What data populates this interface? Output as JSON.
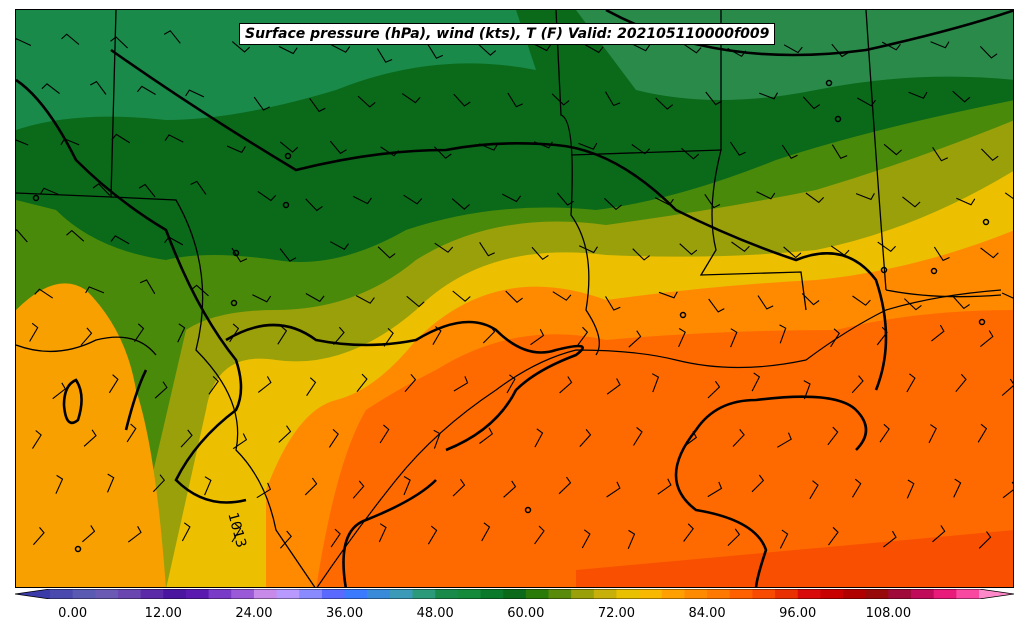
{
  "title": "Surface pressure (hPa), wind (kts), T (F) Valid: 202105110000f009",
  "isobar_label": "1013",
  "colorbar": {
    "ticks": [
      "0.00",
      "12.00",
      "24.00",
      "36.00",
      "48.00",
      "60.00",
      "72.00",
      "84.00",
      "96.00",
      "108.00"
    ],
    "min": -6,
    "max": 123,
    "step": 3,
    "colors": [
      "#3a3aa8",
      "#4a4aae",
      "#5a5ab2",
      "#6a5ab4",
      "#6a46b0",
      "#5a2aa8",
      "#4a16a0",
      "#5a1ab0",
      "#7a3ac8",
      "#9a5ad8",
      "#c88ae8",
      "#b89aff",
      "#8a8aff",
      "#5a6aff",
      "#3a7aff",
      "#3a8ada",
      "#3a9ab8",
      "#2a9a7a",
      "#1a8a4a",
      "#148a3a",
      "#0a7a2a",
      "#0a6a1a",
      "#2a7a0a",
      "#5a8a0a",
      "#9aa00a",
      "#c8b00a",
      "#e8c000",
      "#f8b800",
      "#ffa000",
      "#ff8a00",
      "#ff7800",
      "#ff6000",
      "#f84a00",
      "#e83000",
      "#d80a0a",
      "#c80000",
      "#b00000",
      "#980a0a",
      "#a00a3a",
      "#c00a5a",
      "#e81a7a",
      "#f848a0",
      "#ff88c8"
    ]
  }
}
